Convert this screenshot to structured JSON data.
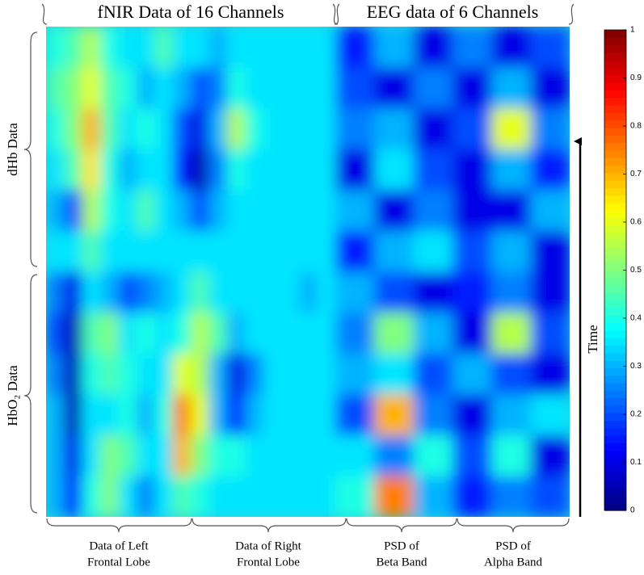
{
  "chart_data": {
    "type": "heatmap",
    "colormap": "jet",
    "top_labels": [
      "fNIR Data of 16 Channels",
      "EEG data of 6 Channels"
    ],
    "side_labels": [
      "dHb Data",
      "HbO₂ Data"
    ],
    "bottom_labels": [
      [
        "Data of Left",
        "Frontal Lobe"
      ],
      [
        "Data of Right",
        "Frontal Lobe"
      ],
      [
        "PSD of",
        "Beta Band"
      ],
      [
        "PSD of",
        "Alpha Band"
      ]
    ],
    "time_label": "Time",
    "clim": [
      0,
      1
    ],
    "cticks": [
      0,
      0.1,
      0.2,
      0.3,
      0.4,
      0.5,
      0.6,
      0.7,
      0.8,
      0.9,
      1
    ],
    "matrix": [
      [
        0.4,
        0.45,
        0.55,
        0.4,
        0.35,
        0.35,
        0.45,
        0.35,
        0.35,
        0.3,
        0.35,
        0.35,
        0.35,
        0.35,
        0.35,
        0.35,
        0.15,
        0.3,
        0.1,
        0.25,
        0.1,
        0.2
      ],
      [
        0.45,
        0.5,
        0.6,
        0.45,
        0.4,
        0.3,
        0.35,
        0.3,
        0.2,
        0.25,
        0.4,
        0.35,
        0.35,
        0.35,
        0.35,
        0.35,
        0.2,
        0.1,
        0.25,
        0.1,
        0.3,
        0.1
      ],
      [
        0.4,
        0.5,
        0.7,
        0.45,
        0.35,
        0.4,
        0.35,
        0.2,
        0.1,
        0.3,
        0.55,
        0.4,
        0.35,
        0.35,
        0.35,
        0.35,
        0.25,
        0.3,
        0.1,
        0.2,
        0.6,
        0.25
      ],
      [
        0.35,
        0.45,
        0.65,
        0.4,
        0.3,
        0.35,
        0.35,
        0.15,
        0.05,
        0.25,
        0.4,
        0.35,
        0.35,
        0.35,
        0.35,
        0.35,
        0.1,
        0.35,
        0.2,
        0.1,
        0.3,
        0.15
      ],
      [
        0.3,
        0.2,
        0.55,
        0.4,
        0.35,
        0.45,
        0.35,
        0.3,
        0.2,
        0.3,
        0.35,
        0.35,
        0.35,
        0.35,
        0.35,
        0.35,
        0.3,
        0.1,
        0.25,
        0.1,
        0.1,
        0.3
      ],
      [
        0.35,
        0.35,
        0.45,
        0.35,
        0.35,
        0.35,
        0.35,
        0.35,
        0.35,
        0.35,
        0.35,
        0.35,
        0.35,
        0.35,
        0.35,
        0.35,
        0.15,
        0.3,
        0.35,
        0.2,
        0.3,
        0.1
      ],
      [
        0.25,
        0.1,
        0.35,
        0.3,
        0.2,
        0.25,
        0.3,
        0.35,
        0.45,
        0.35,
        0.35,
        0.35,
        0.35,
        0.35,
        0.3,
        0.35,
        0.3,
        0.2,
        0.1,
        0.15,
        0.25,
        0.1
      ],
      [
        0.2,
        0.05,
        0.45,
        0.5,
        0.35,
        0.4,
        0.35,
        0.4,
        0.55,
        0.45,
        0.3,
        0.35,
        0.35,
        0.35,
        0.35,
        0.35,
        0.25,
        0.5,
        0.3,
        0.1,
        0.55,
        0.2
      ],
      [
        0.25,
        0.05,
        0.4,
        0.45,
        0.4,
        0.35,
        0.35,
        0.6,
        0.55,
        0.3,
        0.1,
        0.25,
        0.35,
        0.35,
        0.35,
        0.35,
        0.3,
        0.35,
        0.2,
        0.3,
        0.2,
        0.1
      ],
      [
        0.3,
        0.05,
        0.35,
        0.35,
        0.4,
        0.3,
        0.4,
        0.75,
        0.6,
        0.3,
        0.15,
        0.3,
        0.35,
        0.35,
        0.35,
        0.35,
        0.2,
        0.7,
        0.25,
        0.1,
        0.3,
        0.35
      ],
      [
        0.3,
        0.1,
        0.35,
        0.5,
        0.45,
        0.35,
        0.35,
        0.7,
        0.5,
        0.4,
        0.4,
        0.35,
        0.35,
        0.35,
        0.35,
        0.35,
        0.35,
        0.25,
        0.4,
        0.2,
        0.4,
        0.1
      ],
      [
        0.3,
        0.15,
        0.4,
        0.5,
        0.35,
        0.25,
        0.35,
        0.45,
        0.4,
        0.35,
        0.35,
        0.35,
        0.35,
        0.35,
        0.35,
        0.35,
        0.4,
        0.75,
        0.3,
        0.15,
        0.25,
        0.2
      ]
    ]
  }
}
